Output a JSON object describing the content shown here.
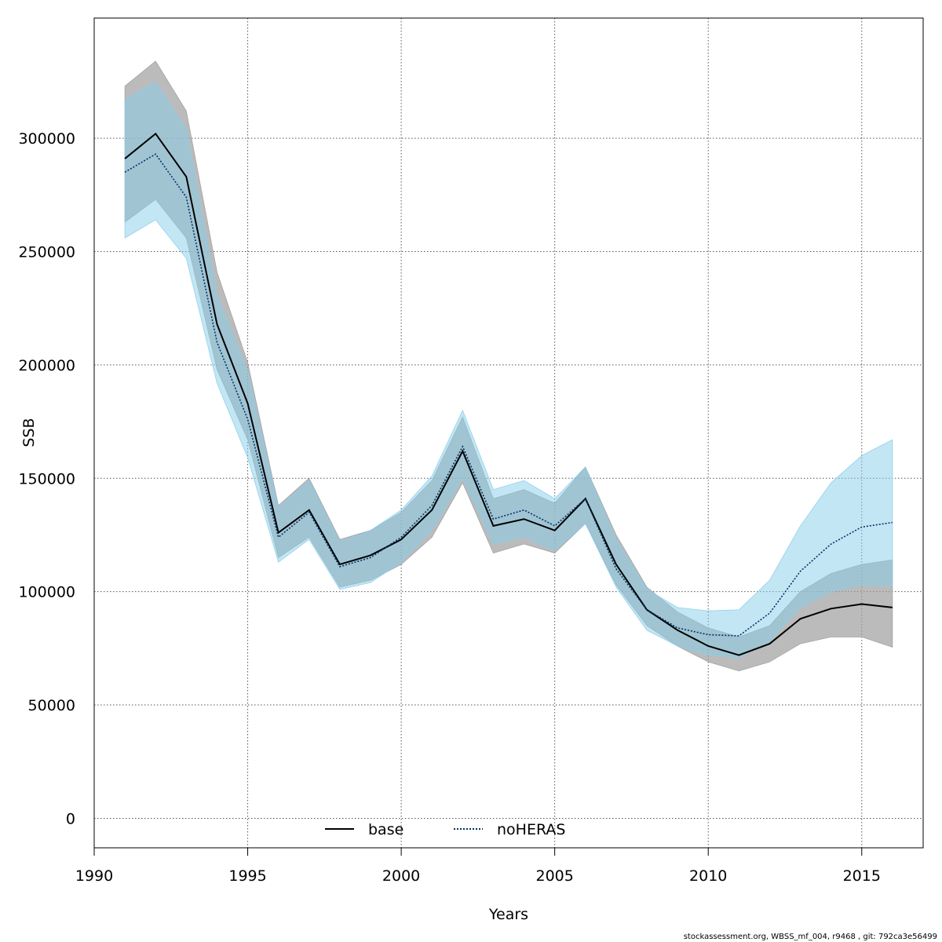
{
  "chart_data": {
    "type": "area",
    "title": "",
    "xlabel": "Years",
    "ylabel": "SSB",
    "xlim": [
      1990,
      2017
    ],
    "ylim": [
      -13000,
      353000
    ],
    "grid": true,
    "legend_position": "bottom-center",
    "x_ticks": [
      1990,
      1995,
      2000,
      2005,
      2010,
      2015
    ],
    "y_ticks": [
      0,
      50000,
      100000,
      150000,
      200000,
      250000,
      300000
    ],
    "x": [
      1991,
      1992,
      1993,
      1994,
      1995,
      1996,
      1997,
      1998,
      1999,
      2000,
      2001,
      2002,
      2003,
      2004,
      2005,
      2006,
      2007,
      2008,
      2009,
      2010,
      2011,
      2012,
      2013,
      2014,
      2015,
      2016
    ],
    "series": [
      {
        "name": "base",
        "line_style": "solid",
        "line_color": "#000000",
        "band_color": "#9e9e9e",
        "values": [
          291000,
          302000,
          283000,
          218000,
          183000,
          126000,
          136000,
          112000,
          116000,
          123000,
          136000,
          162000,
          129000,
          132000,
          127000,
          141000,
          112000,
          92000,
          83000,
          76000,
          72000,
          77000,
          88000,
          92500,
          94500,
          93000
        ],
        "lower": [
          263000,
          273000,
          256000,
          198000,
          167000,
          115000,
          124000,
          102000,
          105000,
          112000,
          124000,
          148000,
          117000,
          121000,
          117000,
          130000,
          103000,
          85000,
          76000,
          69000,
          65000,
          69000,
          77000,
          80000,
          80000,
          75500
        ],
        "upper": [
          323000,
          334000,
          312000,
          241000,
          201000,
          138000,
          150000,
          123000,
          127000,
          135000,
          149000,
          177000,
          141000,
          145000,
          139000,
          155000,
          125000,
          102000,
          91000,
          84000,
          80000,
          85000,
          100000,
          108000,
          112000,
          114000
        ]
      },
      {
        "name": "noHERAS",
        "line_style": "dotted",
        "line_color": "#003366",
        "band_color": "#87ceeb",
        "values": [
          285000,
          293000,
          274000,
          210000,
          176000,
          124000,
          135000,
          111000,
          115000,
          124000,
          138000,
          164000,
          132000,
          136000,
          129000,
          141000,
          110000,
          92000,
          84000,
          81000,
          80500,
          90500,
          109000,
          121000,
          128500,
          130500
        ],
        "lower": [
          256000,
          264000,
          247000,
          192000,
          159000,
          113000,
          123000,
          101000,
          104000,
          113000,
          127000,
          150000,
          121000,
          124000,
          118000,
          130000,
          102000,
          83000,
          76000,
          72000,
          71000,
          78000,
          93000,
          100000,
          103000,
          102500
        ],
        "upper": [
          317000,
          325000,
          304000,
          231000,
          197000,
          137000,
          149000,
          122000,
          127000,
          136000,
          151000,
          180000,
          145000,
          149000,
          141000,
          155000,
          123000,
          101000,
          93000,
          91500,
          92000,
          105000,
          129000,
          148000,
          160000,
          167000
        ]
      }
    ]
  },
  "footer": "stockassessment.org, WBSS_mf_004, r9468 , git: 792ca3e56499"
}
